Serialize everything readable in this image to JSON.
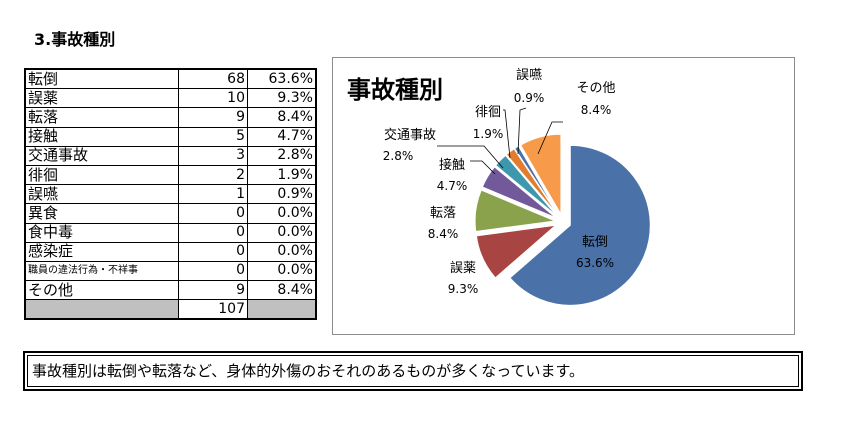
{
  "heading": "3.事故種別",
  "table": {
    "rows": [
      {
        "category": "転倒",
        "count": "68",
        "percent": "63.6%"
      },
      {
        "category": "誤薬",
        "count": "10",
        "percent": "9.3%"
      },
      {
        "category": "転落",
        "count": "9",
        "percent": "8.4%"
      },
      {
        "category": "接触",
        "count": "5",
        "percent": "4.7%"
      },
      {
        "category": "交通事故",
        "count": "3",
        "percent": "2.8%"
      },
      {
        "category": "徘徊",
        "count": "2",
        "percent": "1.9%"
      },
      {
        "category": "誤嚥",
        "count": "1",
        "percent": "0.9%"
      },
      {
        "category": "異食",
        "count": "0",
        "percent": "0.0%"
      },
      {
        "category": "食中毒",
        "count": "0",
        "percent": "0.0%"
      },
      {
        "category": "感染症",
        "count": "0",
        "percent": "0.0%"
      },
      {
        "category": "職員の違法行為・不祥事",
        "count": "0",
        "percent": "0.0%"
      },
      {
        "category": "その他",
        "count": "9",
        "percent": "8.4%"
      }
    ],
    "total": "107"
  },
  "chart_data": {
    "type": "pie",
    "title": "事故種別",
    "slices": [
      {
        "label": "転倒",
        "value": 63.6,
        "value_label": "63.6%",
        "color": "#4a72a8"
      },
      {
        "label": "誤薬",
        "value": 9.3,
        "value_label": "9.3%",
        "color": "#a84442"
      },
      {
        "label": "転落",
        "value": 8.4,
        "value_label": "8.4%",
        "color": "#8aa24c"
      },
      {
        "label": "接触",
        "value": 4.7,
        "value_label": "4.7%",
        "color": "#72599a"
      },
      {
        "label": "交通事故",
        "value": 2.8,
        "value_label": "2.8%",
        "color": "#3d97ad"
      },
      {
        "label": "徘徊",
        "value": 1.9,
        "value_label": "1.9%",
        "color": "#e07d2e"
      },
      {
        "label": "誤嚥",
        "value": 0.9,
        "value_label": "0.9%",
        "color": "#4a72a8"
      },
      {
        "label": "その他",
        "value": 8.4,
        "value_label": "8.4%",
        "color": "#f79a4a"
      }
    ],
    "legend": "none",
    "exploded": true
  },
  "note": "事故種別は転倒や転落など、身体的外傷のおそれのあるものが多くなっています。"
}
